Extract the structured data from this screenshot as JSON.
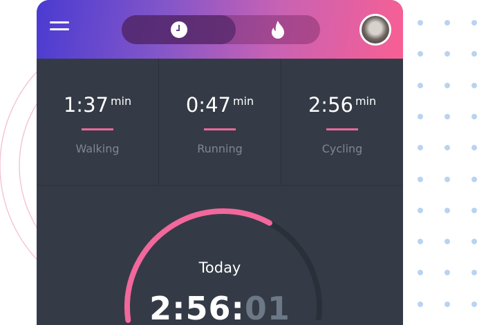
{
  "header": {
    "menu_icon": "hamburger-icon",
    "tabs": [
      {
        "icon": "clock-icon",
        "active": true
      },
      {
        "icon": "flame-icon",
        "active": false
      }
    ],
    "avatar": "user-avatar"
  },
  "stats": [
    {
      "value": "1:37",
      "unit": "min",
      "label": "Walking"
    },
    {
      "value": "0:47",
      "unit": "min",
      "label": "Running"
    },
    {
      "value": "2:56",
      "unit": "min",
      "label": "Cycling"
    }
  ],
  "today": {
    "label": "Today",
    "time_main": "2:56:",
    "time_seconds": "01",
    "progress_fraction": 0.58
  },
  "colors": {
    "accent": "#f2689c",
    "card": "#343b46",
    "gradient_start": "#4a3bd1",
    "gradient_end": "#f85f93",
    "dots": "#b9d3f0"
  }
}
